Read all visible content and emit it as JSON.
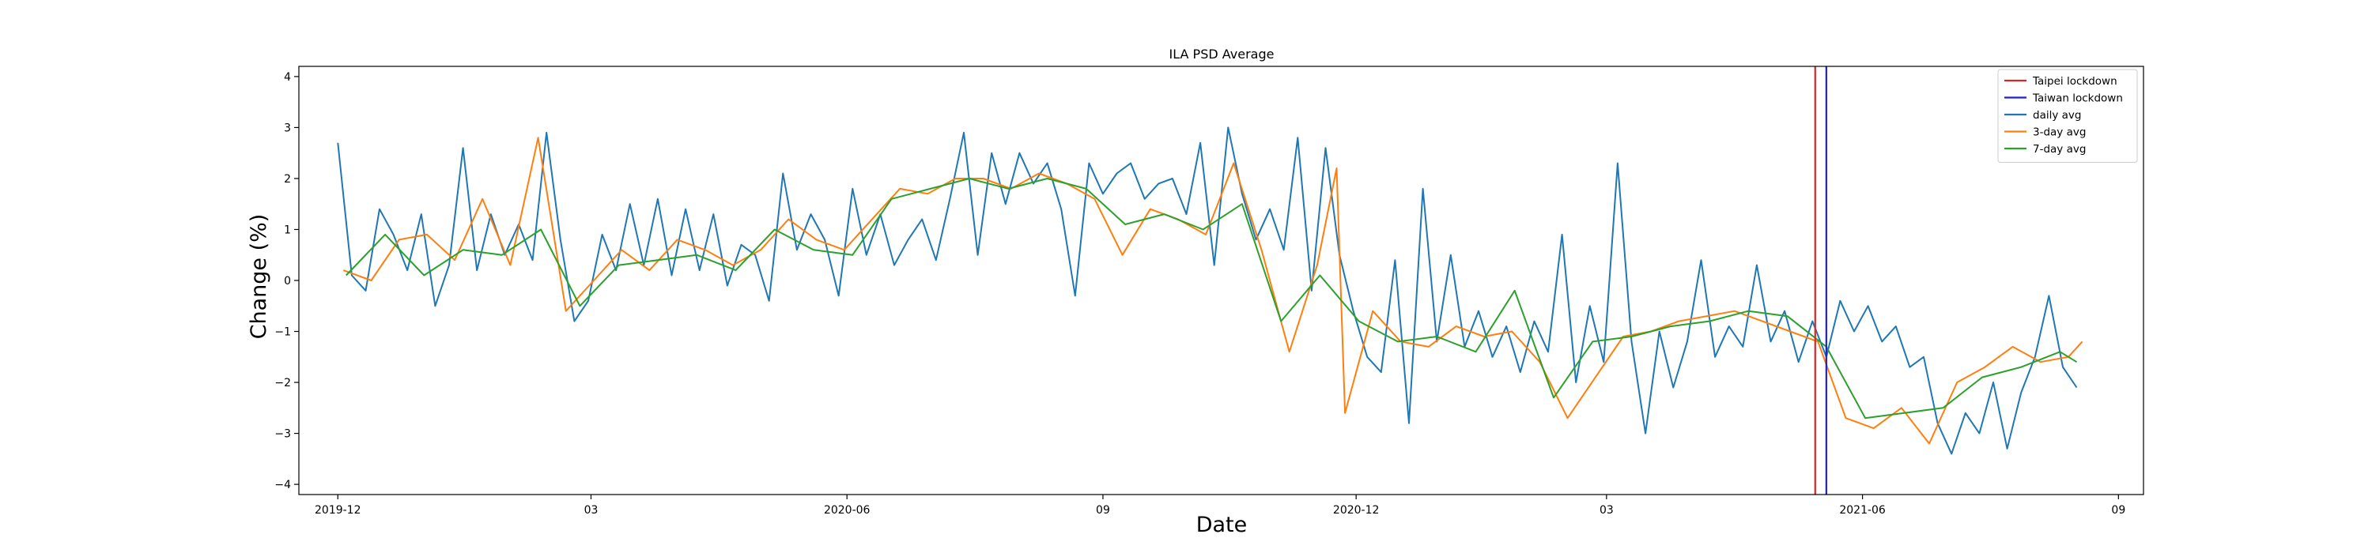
{
  "chart_data": {
    "type": "line",
    "title": "ILA PSD Average",
    "xlabel": "Date",
    "ylabel": "Change (%)",
    "xlim": [
      "2019-11-17",
      "2021-09-10"
    ],
    "ylim": [
      -4.2,
      4.2
    ],
    "y_ticks": [
      -4,
      -3,
      -2,
      -1,
      0,
      1,
      2,
      3,
      4
    ],
    "x_ticks": [
      {
        "date": "2019-12-01",
        "label": "2019-12"
      },
      {
        "date": "2020-03-01",
        "label": "03"
      },
      {
        "date": "2020-06-01",
        "label": "2020-06"
      },
      {
        "date": "2020-09-01",
        "label": "09"
      },
      {
        "date": "2020-12-01",
        "label": "2020-12"
      },
      {
        "date": "2021-03-01",
        "label": "03"
      },
      {
        "date": "2021-06-01",
        "label": "2021-06"
      },
      {
        "date": "2021-09-01",
        "label": "09"
      }
    ],
    "grid": false,
    "legend_position": "top-right",
    "vlines": [
      {
        "name": "Taipei lockdown",
        "date": "2021-05-15",
        "color": "#d62728"
      },
      {
        "name": "Taiwan lockdown",
        "date": "2021-05-19",
        "color": "#1f1fd4"
      }
    ],
    "series": [
      {
        "name": "daily avg",
        "color": "#1f77b4",
        "x": [
          "2019-12-01",
          "2019-12-06",
          "2019-12-11",
          "2019-12-16",
          "2019-12-21",
          "2019-12-26",
          "2019-12-31",
          "2020-01-05",
          "2020-01-10",
          "2020-01-15",
          "2020-01-20",
          "2020-01-25",
          "2020-01-30",
          "2020-02-04",
          "2020-02-09",
          "2020-02-14",
          "2020-02-19",
          "2020-02-24",
          "2020-02-29",
          "2020-03-05",
          "2020-03-10",
          "2020-03-15",
          "2020-03-20",
          "2020-03-25",
          "2020-03-30",
          "2020-04-04",
          "2020-04-09",
          "2020-04-14",
          "2020-04-19",
          "2020-04-24",
          "2020-04-29",
          "2020-05-04",
          "2020-05-09",
          "2020-05-14",
          "2020-05-19",
          "2020-05-24",
          "2020-05-29",
          "2020-06-03",
          "2020-06-08",
          "2020-06-13",
          "2020-06-18",
          "2020-06-23",
          "2020-06-28",
          "2020-07-03",
          "2020-07-08",
          "2020-07-13",
          "2020-07-18",
          "2020-07-23",
          "2020-07-28",
          "2020-08-02",
          "2020-08-07",
          "2020-08-12",
          "2020-08-17",
          "2020-08-22",
          "2020-08-27",
          "2020-09-01",
          "2020-09-06",
          "2020-09-11",
          "2020-09-16",
          "2020-09-21",
          "2020-09-26",
          "2020-10-01",
          "2020-10-06",
          "2020-10-11",
          "2020-10-16",
          "2020-10-21",
          "2020-10-26",
          "2020-10-31",
          "2020-11-05",
          "2020-11-10",
          "2020-11-15",
          "2020-11-20",
          "2020-11-25",
          "2020-11-30",
          "2020-12-05",
          "2020-12-10",
          "2020-12-15",
          "2020-12-20",
          "2020-12-25",
          "2020-12-30",
          "2021-01-04",
          "2021-01-09",
          "2021-01-14",
          "2021-01-19",
          "2021-01-24",
          "2021-01-29",
          "2021-02-03",
          "2021-02-08",
          "2021-02-13",
          "2021-02-18",
          "2021-02-23",
          "2021-02-28",
          "2021-03-05",
          "2021-03-10",
          "2021-03-15",
          "2021-03-20",
          "2021-03-25",
          "2021-03-30",
          "2021-04-04",
          "2021-04-09",
          "2021-04-14",
          "2021-04-19",
          "2021-04-24",
          "2021-04-29",
          "2021-05-04",
          "2021-05-09",
          "2021-05-14",
          "2021-05-19",
          "2021-05-24",
          "2021-05-29",
          "2021-06-03",
          "2021-06-08",
          "2021-06-13",
          "2021-06-18",
          "2021-06-23",
          "2021-06-28",
          "2021-07-03",
          "2021-07-08",
          "2021-07-13",
          "2021-07-18",
          "2021-07-23",
          "2021-07-28",
          "2021-08-02",
          "2021-08-07",
          "2021-08-12",
          "2021-08-17"
        ],
        "values": [
          2.7,
          0.1,
          -0.2,
          1.4,
          0.9,
          0.2,
          1.3,
          -0.5,
          0.3,
          2.6,
          0.2,
          1.3,
          0.5,
          1.1,
          0.4,
          2.9,
          0.8,
          -0.8,
          -0.4,
          0.9,
          0.2,
          1.5,
          0.3,
          1.6,
          0.1,
          1.4,
          0.2,
          1.3,
          -0.1,
          0.7,
          0.5,
          -0.4,
          2.1,
          0.6,
          1.3,
          0.8,
          -0.3,
          1.8,
          0.5,
          1.3,
          0.3,
          0.8,
          1.2,
          0.4,
          1.6,
          2.9,
          0.5,
          2.5,
          1.5,
          2.5,
          1.9,
          2.3,
          1.4,
          -0.3,
          2.3,
          1.7,
          2.1,
          2.3,
          1.6,
          1.9,
          2.0,
          1.3,
          2.7,
          0.3,
          3.0,
          1.7,
          0.8,
          1.4,
          0.6,
          2.8,
          -0.2,
          2.6,
          0.5,
          -0.6,
          -1.5,
          -1.8,
          0.4,
          -2.8,
          1.8,
          -1.2,
          0.5,
          -1.3,
          -0.6,
          -1.5,
          -0.9,
          -1.8,
          -0.8,
          -1.4,
          0.9,
          -2.0,
          -0.5,
          -1.6,
          2.3,
          -1.2,
          -3.0,
          -1.0,
          -2.1,
          -1.2,
          0.4,
          -1.5,
          -0.9,
          -1.3,
          0.3,
          -1.2,
          -0.6,
          -1.6,
          -0.8,
          -1.5,
          -0.4,
          -1.0,
          -0.5,
          -1.2,
          -0.9,
          -1.7,
          -1.5,
          -2.8,
          -3.4,
          -2.6,
          -3.0,
          -2.0,
          -3.3,
          -2.2,
          -1.5,
          -0.3,
          -1.7,
          -2.1
        ]
      },
      {
        "name": "3-day avg",
        "color": "#ff7f0e",
        "x": [
          "2019-12-03",
          "2019-12-13",
          "2019-12-23",
          "2020-01-02",
          "2020-01-12",
          "2020-01-22",
          "2020-02-01",
          "2020-02-11",
          "2020-02-21",
          "2020-03-02",
          "2020-03-12",
          "2020-03-22",
          "2020-04-01",
          "2020-04-11",
          "2020-04-21",
          "2020-05-01",
          "2020-05-11",
          "2020-05-21",
          "2020-05-31",
          "2020-06-10",
          "2020-06-20",
          "2020-06-30",
          "2020-07-10",
          "2020-07-20",
          "2020-07-30",
          "2020-08-09",
          "2020-08-19",
          "2020-08-29",
          "2020-09-08",
          "2020-09-18",
          "2020-09-28",
          "2020-10-08",
          "2020-10-18",
          "2020-10-28",
          "2020-11-07",
          "2020-11-17",
          "2020-11-24",
          "2020-11-27",
          "2020-12-07",
          "2020-12-17",
          "2020-12-27",
          "2021-01-06",
          "2021-01-16",
          "2021-01-26",
          "2021-02-05",
          "2021-02-15",
          "2021-02-25",
          "2021-03-07",
          "2021-03-17",
          "2021-03-27",
          "2021-04-06",
          "2021-04-16",
          "2021-04-26",
          "2021-05-06",
          "2021-05-16",
          "2021-05-26",
          "2021-06-05",
          "2021-06-15",
          "2021-06-25",
          "2021-07-05",
          "2021-07-15",
          "2021-07-25",
          "2021-08-04",
          "2021-08-14",
          "2021-08-19"
        ],
        "values": [
          0.2,
          0.0,
          0.8,
          0.9,
          0.4,
          1.6,
          0.3,
          2.8,
          -0.6,
          0.0,
          0.6,
          0.2,
          0.8,
          0.6,
          0.3,
          0.6,
          1.2,
          0.8,
          0.6,
          1.2,
          1.8,
          1.7,
          2.0,
          2.0,
          1.8,
          2.1,
          1.9,
          1.6,
          0.5,
          1.4,
          1.2,
          0.9,
          2.3,
          0.6,
          -1.4,
          0.3,
          2.2,
          -2.6,
          -0.6,
          -1.2,
          -1.3,
          -0.9,
          -1.1,
          -1.0,
          -1.6,
          -2.7,
          -1.9,
          -1.1,
          -1.0,
          -0.8,
          -0.7,
          -0.6,
          -0.8,
          -1.0,
          -1.2,
          -2.7,
          -2.9,
          -2.5,
          -3.2,
          -2.0,
          -1.7,
          -1.3,
          -1.6,
          -1.5,
          -1.2
        ]
      },
      {
        "name": "7-day avg",
        "color": "#2ca02c",
        "x": [
          "2019-12-04",
          "2019-12-18",
          "2020-01-01",
          "2020-01-15",
          "2020-01-29",
          "2020-02-12",
          "2020-02-26",
          "2020-03-11",
          "2020-03-25",
          "2020-04-08",
          "2020-04-22",
          "2020-05-06",
          "2020-05-20",
          "2020-06-03",
          "2020-06-17",
          "2020-07-01",
          "2020-07-15",
          "2020-07-29",
          "2020-08-12",
          "2020-08-26",
          "2020-09-09",
          "2020-09-23",
          "2020-10-07",
          "2020-10-21",
          "2020-11-04",
          "2020-11-18",
          "2020-12-02",
          "2020-12-16",
          "2020-12-30",
          "2021-01-13",
          "2021-01-27",
          "2021-02-10",
          "2021-02-24",
          "2021-03-10",
          "2021-03-24",
          "2021-04-07",
          "2021-04-21",
          "2021-05-05",
          "2021-05-19",
          "2021-06-02",
          "2021-06-16",
          "2021-06-30",
          "2021-07-14",
          "2021-07-28",
          "2021-08-11",
          "2021-08-17"
        ],
        "values": [
          0.1,
          0.9,
          0.1,
          0.6,
          0.5,
          1.0,
          -0.5,
          0.3,
          0.4,
          0.5,
          0.2,
          1.0,
          0.6,
          0.5,
          1.6,
          1.8,
          2.0,
          1.8,
          2.0,
          1.8,
          1.1,
          1.3,
          1.0,
          1.5,
          -0.8,
          0.1,
          -0.8,
          -1.2,
          -1.1,
          -1.4,
          -0.2,
          -2.3,
          -1.2,
          -1.1,
          -0.9,
          -0.8,
          -0.6,
          -0.7,
          -1.3,
          -2.7,
          -2.6,
          -2.5,
          -1.9,
          -1.7,
          -1.4,
          -1.6
        ]
      }
    ]
  }
}
